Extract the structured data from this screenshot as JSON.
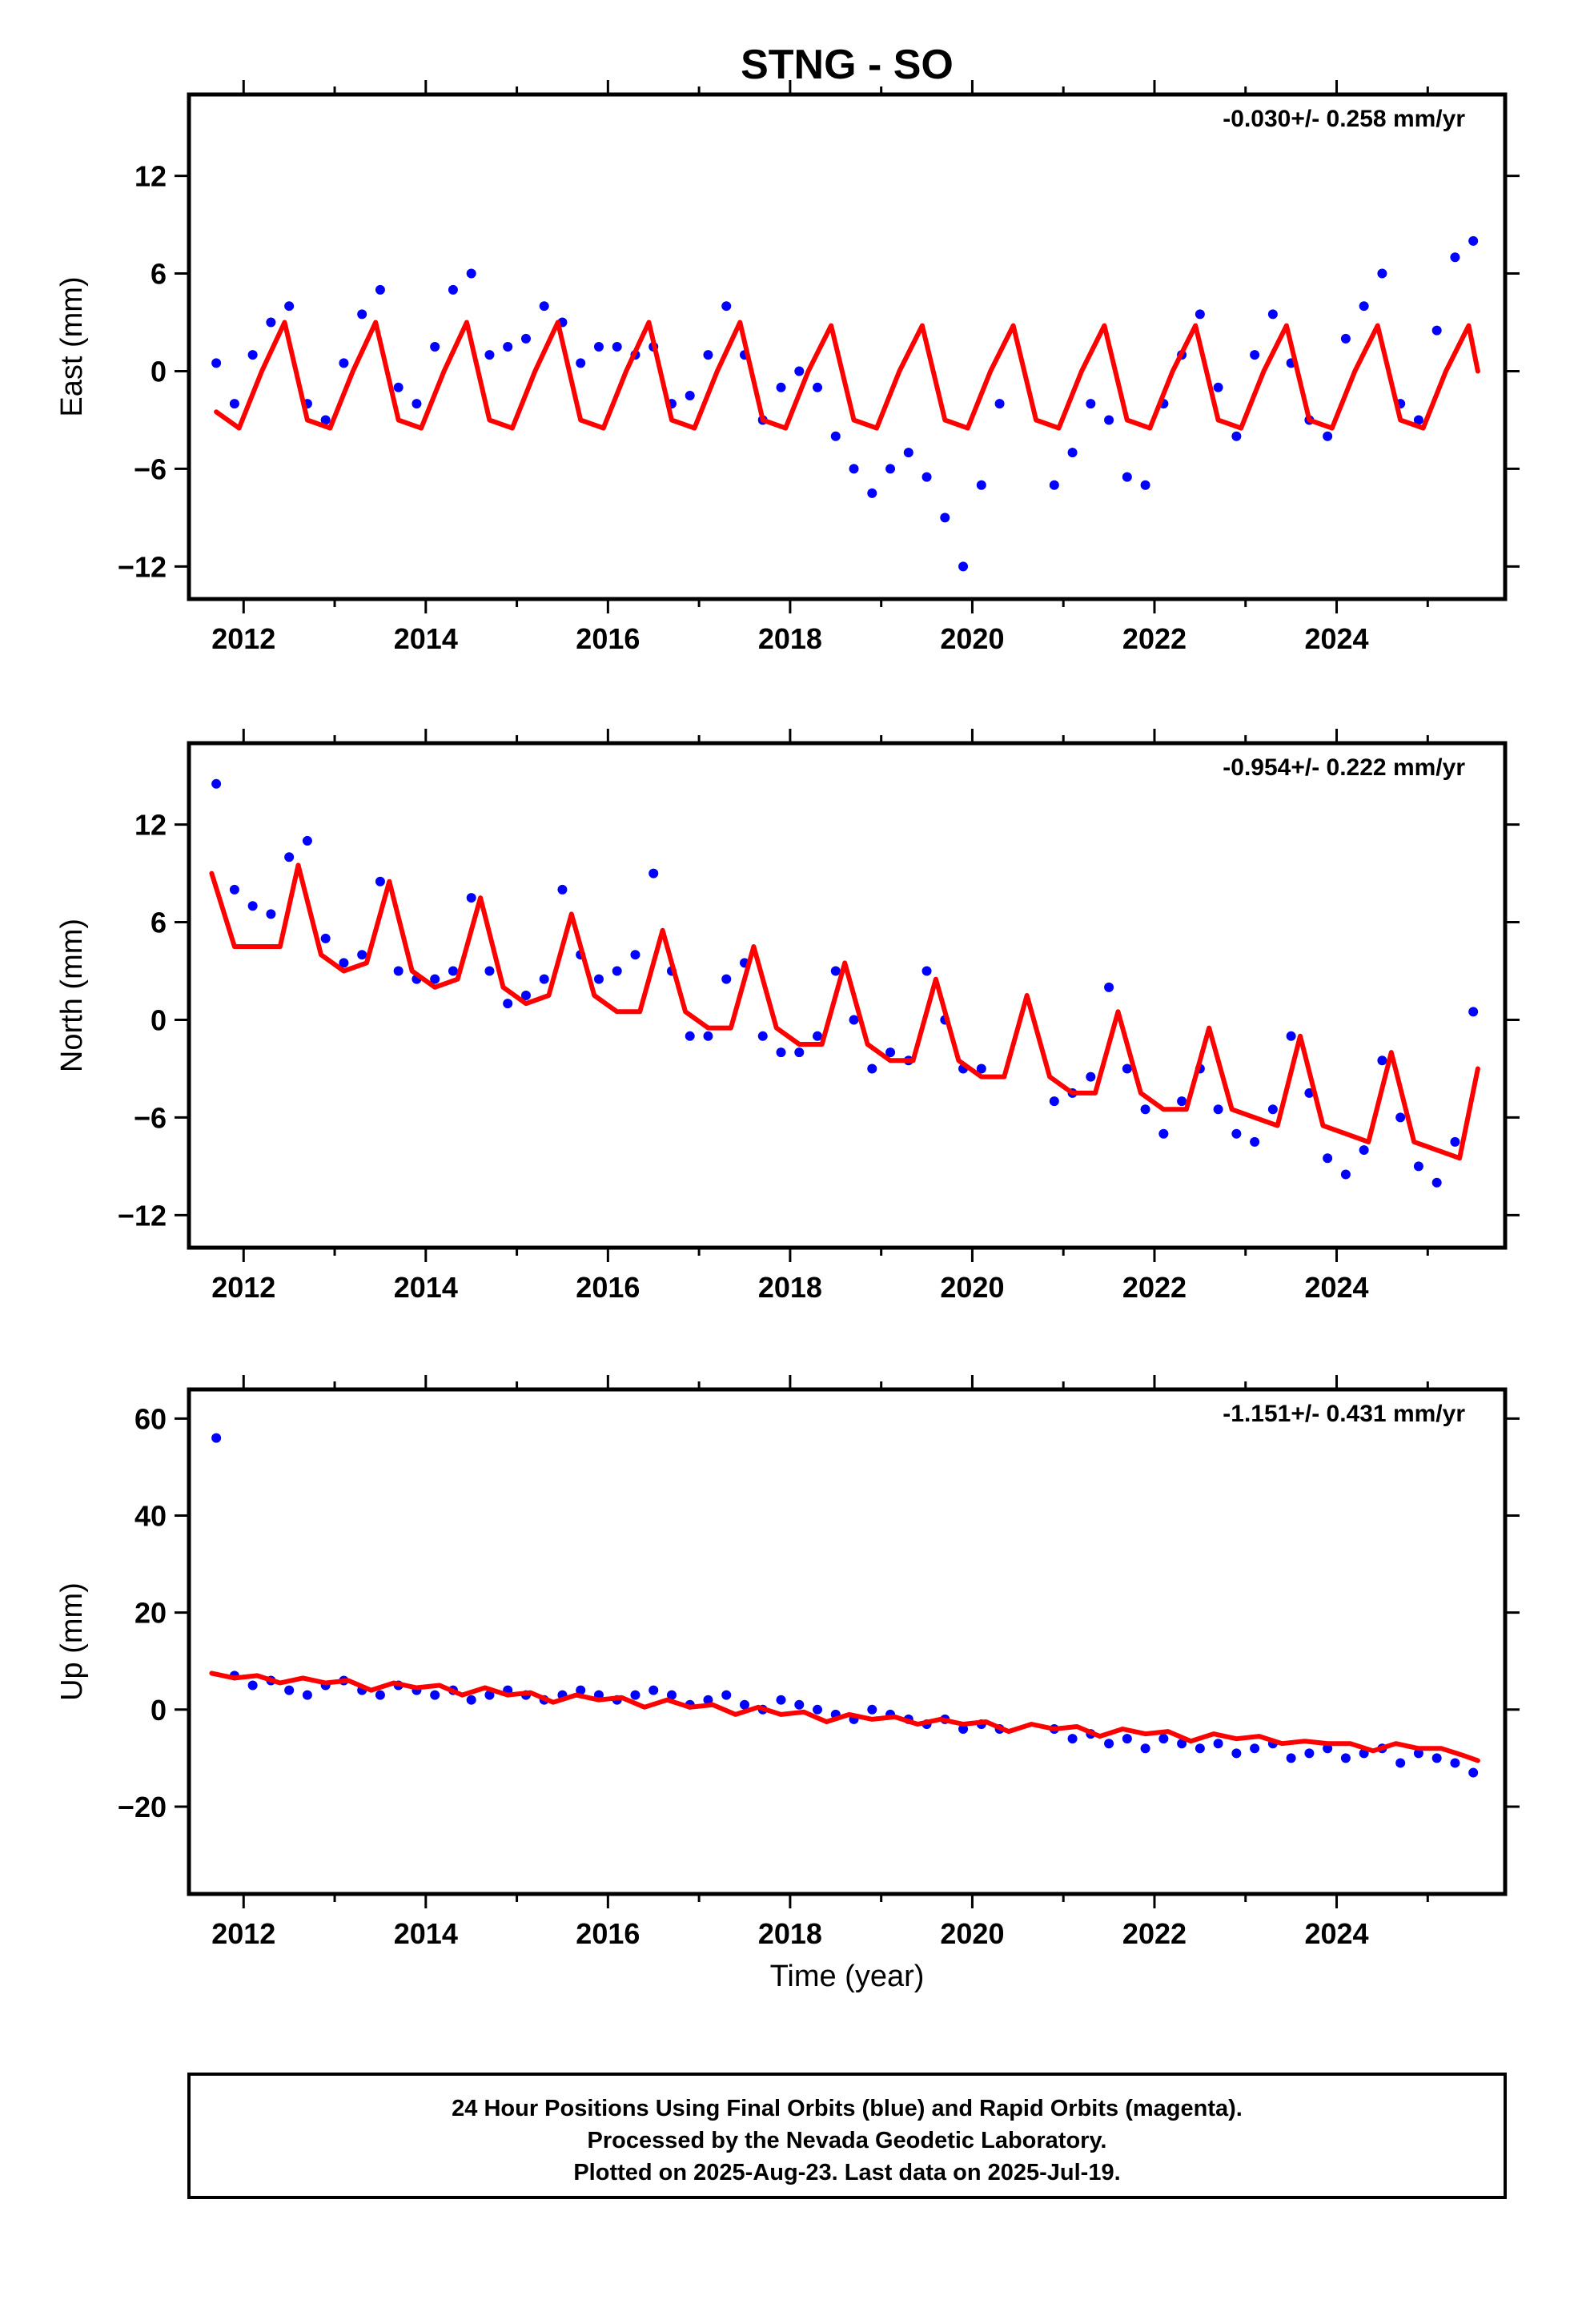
{
  "title": "STNG - SO",
  "xlabel": "Time (year)",
  "footer": [
    "24 Hour Positions Using Final Orbits (blue) and Rapid Orbits (magenta).",
    "Processed by the Nevada Geodetic Laboratory.",
    "Plotted on 2025-Aug-23. Last data on 2025-Jul-19."
  ],
  "colors": {
    "final_orbits": "#0000ff",
    "model": "#ff0000",
    "frame": "#000000"
  },
  "chart_data": [
    {
      "type": "scatter",
      "ylabel": "East (mm)",
      "rate": "-0.030+/- 0.258 mm/yr",
      "xlim": [
        2011.4,
        2025.85
      ],
      "ylim": [
        -14,
        17
      ],
      "xticks": [
        2012,
        2014,
        2016,
        2018,
        2020,
        2022,
        2024
      ],
      "yticks": [
        -12,
        -6,
        0,
        6,
        12
      ],
      "grid": false,
      "series": [
        {
          "kind": "points",
          "x": [
            2011.7,
            2011.9,
            2012.1,
            2012.3,
            2012.5,
            2012.7,
            2012.9,
            2013.1,
            2013.3,
            2013.5,
            2013.7,
            2013.9,
            2014.1,
            2014.3,
            2014.5,
            2014.7,
            2014.9,
            2015.1,
            2015.3,
            2015.5,
            2015.7,
            2015.9,
            2016.1,
            2016.3,
            2016.5,
            2016.7,
            2016.9,
            2017.1,
            2017.3,
            2017.5,
            2017.7,
            2017.9,
            2018.1,
            2018.3,
            2018.5,
            2018.7,
            2018.9,
            2019.1,
            2019.3,
            2019.5,
            2019.7,
            2019.9,
            2020.1,
            2020.3,
            2020.9,
            2021.1,
            2021.3,
            2021.5,
            2021.7,
            2021.9,
            2022.1,
            2022.3,
            2022.5,
            2022.7,
            2022.9,
            2023.1,
            2023.3,
            2023.5,
            2023.7,
            2023.9,
            2024.1,
            2024.3,
            2024.5,
            2024.7,
            2024.9,
            2025.1,
            2025.3,
            2025.5
          ],
          "y": [
            0.5,
            -2.0,
            1.0,
            3.0,
            4.0,
            -2.0,
            -3.0,
            0.5,
            3.5,
            5.0,
            -1.0,
            -2.0,
            1.5,
            5.0,
            6.0,
            1.0,
            1.5,
            2.0,
            4.0,
            3.0,
            0.5,
            1.5,
            1.5,
            1.0,
            1.5,
            -2.0,
            -1.5,
            1.0,
            4.0,
            1.0,
            -3.0,
            -1.0,
            0.0,
            -1.0,
            -4.0,
            -6.0,
            -7.5,
            -6.0,
            -5.0,
            -6.5,
            -9.0,
            -12.0,
            -7.0,
            -2.0,
            -7.0,
            -5.0,
            -2.0,
            -3.0,
            -6.5,
            -7.0,
            -2.0,
            1.0,
            3.5,
            -1.0,
            -4.0,
            1.0,
            3.5,
            0.5,
            -3.0,
            -4.0,
            2.0,
            4.0,
            6.0,
            -2.0,
            -3.0,
            2.5,
            7.0,
            8.0
          ]
        },
        {
          "kind": "line",
          "x": [
            2011.7,
            2011.95,
            2012.2,
            2012.45,
            2012.7,
            2012.95,
            2013.2,
            2013.45,
            2013.7,
            2013.95,
            2014.2,
            2014.45,
            2014.7,
            2014.95,
            2015.2,
            2015.45,
            2015.7,
            2015.95,
            2016.2,
            2016.45,
            2016.7,
            2016.95,
            2017.2,
            2017.45,
            2017.7,
            2017.95,
            2018.2,
            2018.45,
            2018.7,
            2018.95,
            2019.2,
            2019.45,
            2019.7,
            2019.95,
            2020.2,
            2020.45,
            2020.7,
            2020.95,
            2021.2,
            2021.45,
            2021.7,
            2021.95,
            2022.2,
            2022.45,
            2022.7,
            2022.95,
            2023.2,
            2023.45,
            2023.7,
            2023.95,
            2024.2,
            2024.45,
            2024.7,
            2024.95,
            2025.2,
            2025.45,
            2025.55
          ],
          "y": [
            -2.5,
            -3.5,
            0.0,
            3.0,
            -3.0,
            -3.5,
            0.0,
            3.0,
            -3.0,
            -3.5,
            0.0,
            3.0,
            -3.0,
            -3.5,
            0.0,
            3.0,
            -3.0,
            -3.5,
            0.0,
            3.0,
            -3.0,
            -3.5,
            0.0,
            3.0,
            -3.0,
            -3.5,
            0.0,
            2.8,
            -3.0,
            -3.5,
            0.0,
            2.8,
            -3.0,
            -3.5,
            0.0,
            2.8,
            -3.0,
            -3.5,
            0.0,
            2.8,
            -3.0,
            -3.5,
            0.0,
            2.8,
            -3.0,
            -3.5,
            0.0,
            2.8,
            -3.0,
            -3.5,
            0.0,
            2.8,
            -3.0,
            -3.5,
            0.0,
            2.8,
            0.0
          ]
        }
      ]
    },
    {
      "type": "scatter",
      "ylabel": "North (mm)",
      "rate": "-0.954+/- 0.222 mm/yr",
      "xlim": [
        2011.4,
        2025.85
      ],
      "ylim": [
        -14,
        17
      ],
      "xticks": [
        2012,
        2014,
        2016,
        2018,
        2020,
        2022,
        2024
      ],
      "yticks": [
        -12,
        -6,
        0,
        6,
        12
      ],
      "grid": false,
      "series": [
        {
          "kind": "points",
          "x": [
            2011.7,
            2011.9,
            2012.1,
            2012.3,
            2012.5,
            2012.7,
            2012.9,
            2013.1,
            2013.3,
            2013.5,
            2013.7,
            2013.9,
            2014.1,
            2014.3,
            2014.5,
            2014.7,
            2014.9,
            2015.1,
            2015.3,
            2015.5,
            2015.7,
            2015.9,
            2016.1,
            2016.3,
            2016.5,
            2016.7,
            2016.9,
            2017.1,
            2017.3,
            2017.5,
            2017.7,
            2017.9,
            2018.1,
            2018.3,
            2018.5,
            2018.7,
            2018.9,
            2019.1,
            2019.3,
            2019.5,
            2019.7,
            2019.9,
            2020.1,
            2020.9,
            2021.1,
            2021.3,
            2021.5,
            2021.7,
            2021.9,
            2022.1,
            2022.3,
            2022.5,
            2022.7,
            2022.9,
            2023.1,
            2023.3,
            2023.5,
            2023.7,
            2023.9,
            2024.1,
            2024.3,
            2024.5,
            2024.7,
            2024.9,
            2025.1,
            2025.3,
            2025.5
          ],
          "y": [
            14.5,
            8.0,
            7.0,
            6.5,
            10.0,
            11.0,
            5.0,
            3.5,
            4.0,
            8.5,
            3.0,
            2.5,
            2.5,
            3.0,
            7.5,
            3.0,
            1.0,
            1.5,
            2.5,
            8.0,
            4.0,
            2.5,
            3.0,
            4.0,
            9.0,
            3.0,
            -1.0,
            -1.0,
            2.5,
            3.5,
            -1.0,
            -2.0,
            -2.0,
            -1.0,
            3.0,
            0.0,
            -3.0,
            -2.0,
            -2.5,
            3.0,
            0.0,
            -3.0,
            -3.0,
            -5.0,
            -4.5,
            -3.5,
            2.0,
            -3.0,
            -5.5,
            -7.0,
            -5.0,
            -3.0,
            -5.5,
            -7.0,
            -7.5,
            -5.5,
            -1.0,
            -4.5,
            -8.5,
            -9.5,
            -8.0,
            -2.5,
            -6.0,
            -9.0,
            -10.0,
            -7.5,
            0.5
          ]
        },
        {
          "kind": "line",
          "x": [
            2011.65,
            2011.9,
            2012.15,
            2012.4,
            2012.6,
            2012.85,
            2013.1,
            2013.35,
            2013.6,
            2013.85,
            2014.1,
            2014.35,
            2014.6,
            2014.85,
            2015.1,
            2015.35,
            2015.6,
            2015.85,
            2016.1,
            2016.35,
            2016.6,
            2016.85,
            2017.1,
            2017.35,
            2017.6,
            2017.85,
            2018.1,
            2018.35,
            2018.6,
            2018.85,
            2019.1,
            2019.35,
            2019.6,
            2019.85,
            2020.1,
            2020.35,
            2020.6,
            2020.85,
            2021.1,
            2021.35,
            2021.6,
            2021.85,
            2022.1,
            2022.35,
            2022.6,
            2022.85,
            2023.1,
            2023.35,
            2023.6,
            2023.85,
            2024.1,
            2024.35,
            2024.6,
            2024.85,
            2025.1,
            2025.35,
            2025.55
          ],
          "y": [
            9.0,
            4.5,
            4.5,
            4.5,
            9.5,
            4.0,
            3.0,
            3.5,
            8.5,
            3.0,
            2.0,
            2.5,
            7.5,
            2.0,
            1.0,
            1.5,
            6.5,
            1.5,
            0.5,
            0.5,
            5.5,
            0.5,
            -0.5,
            -0.5,
            4.5,
            -0.5,
            -1.5,
            -1.5,
            3.5,
            -1.5,
            -2.5,
            -2.5,
            2.5,
            -2.5,
            -3.5,
            -3.5,
            1.5,
            -3.5,
            -4.5,
            -4.5,
            0.5,
            -4.5,
            -5.5,
            -5.5,
            -0.5,
            -5.5,
            -6.0,
            -6.5,
            -1.0,
            -6.5,
            -7.0,
            -7.5,
            -2.0,
            -7.5,
            -8.0,
            -8.5,
            -3.0
          ]
        }
      ]
    },
    {
      "type": "scatter",
      "ylabel": "Up (mm)",
      "rate": "-1.151+/- 0.431 mm/yr",
      "xlim": [
        2011.4,
        2025.85
      ],
      "ylim": [
        -38,
        66
      ],
      "xticks": [
        2012,
        2014,
        2016,
        2018,
        2020,
        2022,
        2024
      ],
      "yticks": [
        -20,
        0,
        20,
        40,
        60
      ],
      "grid": false,
      "series": [
        {
          "kind": "points",
          "x": [
            2011.7,
            2011.9,
            2012.1,
            2012.3,
            2012.5,
            2012.7,
            2012.9,
            2013.1,
            2013.3,
            2013.5,
            2013.7,
            2013.9,
            2014.1,
            2014.3,
            2014.5,
            2014.7,
            2014.9,
            2015.1,
            2015.3,
            2015.5,
            2015.7,
            2015.9,
            2016.1,
            2016.3,
            2016.5,
            2016.7,
            2016.9,
            2017.1,
            2017.3,
            2017.5,
            2017.7,
            2017.9,
            2018.1,
            2018.3,
            2018.5,
            2018.7,
            2018.9,
            2019.1,
            2019.3,
            2019.5,
            2019.7,
            2019.9,
            2020.1,
            2020.3,
            2020.9,
            2021.1,
            2021.3,
            2021.5,
            2021.7,
            2021.9,
            2022.1,
            2022.3,
            2022.5,
            2022.7,
            2022.9,
            2023.1,
            2023.3,
            2023.5,
            2023.7,
            2023.9,
            2024.1,
            2024.3,
            2024.5,
            2024.7,
            2024.9,
            2025.1,
            2025.3,
            2025.5
          ],
          "y": [
            56.0,
            7.0,
            5.0,
            6.0,
            4.0,
            3.0,
            5.0,
            6.0,
            4.0,
            3.0,
            5.0,
            4.0,
            3.0,
            4.0,
            2.0,
            3.0,
            4.0,
            3.0,
            2.0,
            3.0,
            4.0,
            3.0,
            2.0,
            3.0,
            4.0,
            3.0,
            1.0,
            2.0,
            3.0,
            1.0,
            0.0,
            2.0,
            1.0,
            0.0,
            -1.0,
            -2.0,
            0.0,
            -1.0,
            -2.0,
            -3.0,
            -2.0,
            -4.0,
            -3.0,
            -4.0,
            -4.0,
            -6.0,
            -5.0,
            -7.0,
            -6.0,
            -8.0,
            -6.0,
            -7.0,
            -8.0,
            -7.0,
            -9.0,
            -8.0,
            -7.0,
            -10.0,
            -9.0,
            -8.0,
            -10.0,
            -9.0,
            -8.0,
            -11.0,
            -9.0,
            -10.0,
            -11.0,
            -13.0
          ]
        },
        {
          "kind": "line",
          "x": [
            2011.65,
            2011.9,
            2012.15,
            2012.4,
            2012.65,
            2012.9,
            2013.15,
            2013.4,
            2013.65,
            2013.9,
            2014.15,
            2014.4,
            2014.65,
            2014.9,
            2015.15,
            2015.4,
            2015.65,
            2015.9,
            2016.15,
            2016.4,
            2016.65,
            2016.9,
            2017.15,
            2017.4,
            2017.65,
            2017.9,
            2018.15,
            2018.4,
            2018.65,
            2018.9,
            2019.15,
            2019.4,
            2019.65,
            2019.9,
            2020.15,
            2020.4,
            2020.65,
            2020.9,
            2021.15,
            2021.4,
            2021.65,
            2021.9,
            2022.15,
            2022.4,
            2022.65,
            2022.9,
            2023.15,
            2023.4,
            2023.65,
            2023.9,
            2024.15,
            2024.4,
            2024.65,
            2024.9,
            2025.15,
            2025.4,
            2025.55
          ],
          "y": [
            7.5,
            6.5,
            7.0,
            5.5,
            6.5,
            5.5,
            6.0,
            4.0,
            5.5,
            4.5,
            5.0,
            3.0,
            4.5,
            3.0,
            3.5,
            1.5,
            3.0,
            2.0,
            2.5,
            0.5,
            2.0,
            0.5,
            1.0,
            -1.0,
            0.5,
            -1.0,
            -0.5,
            -2.5,
            -1.0,
            -2.0,
            -1.5,
            -3.0,
            -2.0,
            -3.0,
            -2.5,
            -4.5,
            -3.0,
            -4.0,
            -3.5,
            -5.5,
            -4.0,
            -5.0,
            -4.5,
            -6.5,
            -5.0,
            -6.0,
            -5.5,
            -7.0,
            -6.5,
            -7.0,
            -7.0,
            -8.5,
            -7.0,
            -8.0,
            -8.0,
            -9.5,
            -10.5
          ]
        }
      ]
    }
  ]
}
